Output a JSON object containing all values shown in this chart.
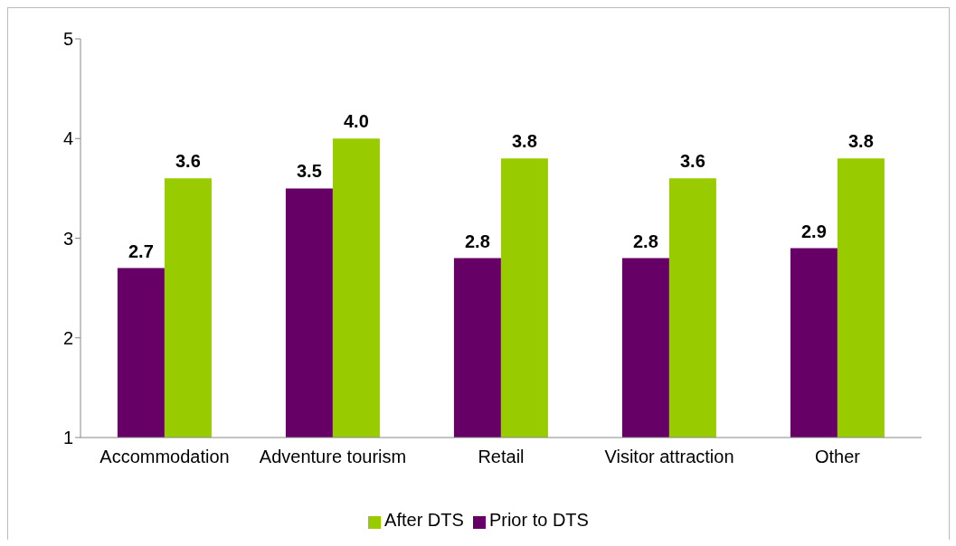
{
  "chart_data": {
    "type": "bar",
    "categories": [
      "Accommodation",
      "Adventure tourism",
      "Retail",
      "Visitor attraction",
      "Other"
    ],
    "series": [
      {
        "name": "Prior to DTS",
        "color": "#660066",
        "values": [
          2.7,
          3.5,
          2.8,
          2.8,
          2.9
        ],
        "value_labels": [
          "2.7",
          "3.5",
          "2.8",
          "2.8",
          "2.9"
        ]
      },
      {
        "name": "After DTS",
        "color": "#99cc00",
        "values": [
          3.6,
          4.0,
          3.8,
          3.6,
          3.8
        ],
        "value_labels": [
          "3.6",
          "4.0",
          "3.8",
          "3.6",
          "3.8"
        ]
      }
    ],
    "ylim": [
      1,
      5
    ],
    "yticks": [
      1,
      2,
      3,
      4,
      5
    ],
    "grid": false,
    "legend": "bottom"
  }
}
